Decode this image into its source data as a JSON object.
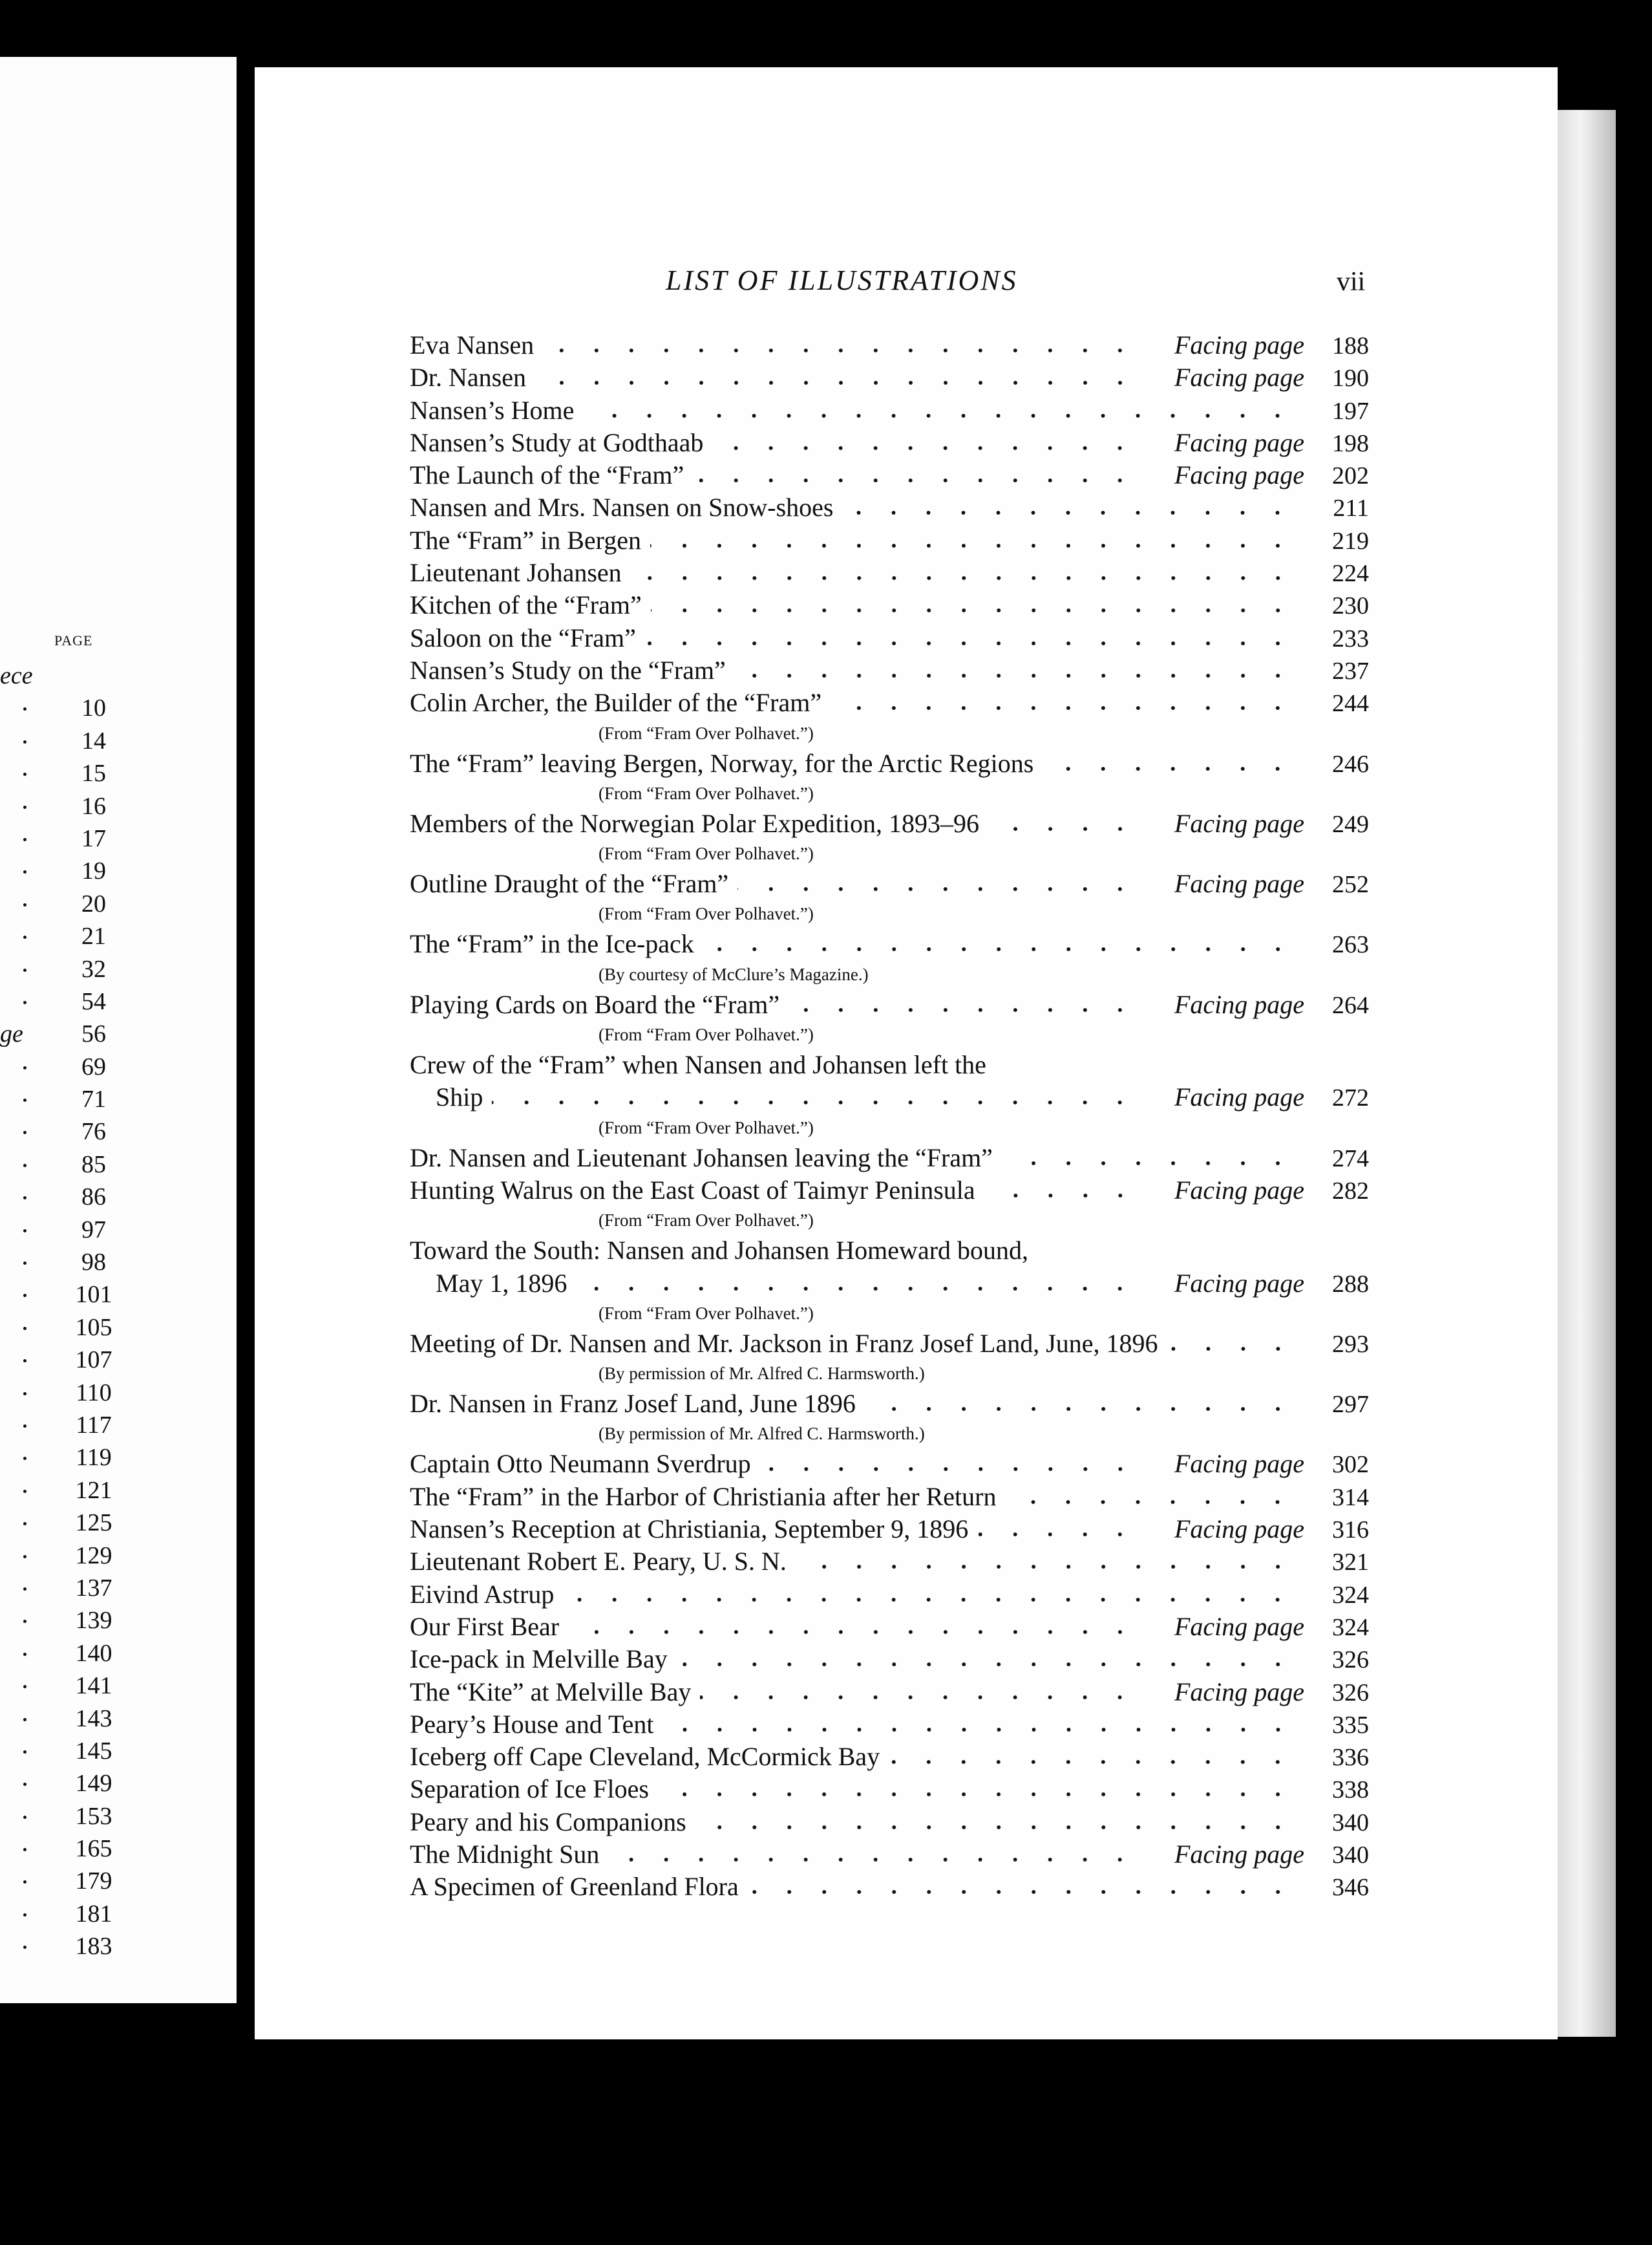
{
  "left_page": {
    "header": "PAGE",
    "rows": [
      {
        "prefix": "ece"
      },
      {
        "page": "10"
      },
      {
        "page": "14"
      },
      {
        "page": "15"
      },
      {
        "page": "16"
      },
      {
        "page": "17"
      },
      {
        "page": "19"
      },
      {
        "page": "20"
      },
      {
        "page": "21"
      },
      {
        "page": "32"
      },
      {
        "page": "54"
      },
      {
        "prefix": "ge",
        "page": "56"
      },
      {
        "page": "69"
      },
      {
        "page": "71"
      },
      {
        "page": "76"
      },
      {
        "page": "85"
      },
      {
        "page": "86"
      },
      {
        "page": "97"
      },
      {
        "page": "98"
      },
      {
        "page": "101"
      },
      {
        "page": "105"
      },
      {
        "page": "107"
      },
      {
        "page": "110"
      },
      {
        "page": "117"
      },
      {
        "page": "119"
      },
      {
        "page": "121"
      },
      {
        "page": "125"
      },
      {
        "page": "129"
      },
      {
        "page": "137"
      },
      {
        "page": "139"
      },
      {
        "page": "140"
      },
      {
        "page": "141"
      },
      {
        "page": "143"
      },
      {
        "page": "145"
      },
      {
        "page": "149"
      },
      {
        "page": "153"
      },
      {
        "page": "165"
      },
      {
        "page": "179"
      },
      {
        "page": "181"
      },
      {
        "page": "183"
      }
    ]
  },
  "right_page": {
    "header": {
      "title": "LIST OF ILLUSTRATIONS",
      "page_number": "vii"
    },
    "entries": [
      {
        "title": "Eva Nansen",
        "facing": "Facing page",
        "page": "188"
      },
      {
        "title": "Dr. Nansen",
        "facing": "Facing page",
        "page": "190"
      },
      {
        "title": "Nansen’s Home",
        "page": "197"
      },
      {
        "title": "Nansen’s Study at Godthaab",
        "facing": "Facing page",
        "page": "198"
      },
      {
        "title": "The Launch of the “Fram”",
        "facing": "Facing page",
        "page": "202"
      },
      {
        "title": "Nansen and Mrs. Nansen on Snow-shoes",
        "page": "211"
      },
      {
        "title": "The “Fram” in Bergen",
        "page": "219"
      },
      {
        "title": "Lieutenant Johansen",
        "page": "224"
      },
      {
        "title": "Kitchen of the “Fram”",
        "page": "230"
      },
      {
        "title": "Saloon on the “Fram”",
        "page": "233"
      },
      {
        "title": "Nansen’s Study on the “Fram”",
        "page": "237"
      },
      {
        "title": "Colin Archer, the Builder of the “Fram”",
        "page": "244",
        "note": "(From “Fram Over Polhavet.”)"
      },
      {
        "title": "The “Fram” leaving Bergen, Norway, for the Arctic Regions",
        "page": "246",
        "note": "(From “Fram Over Polhavet.”)"
      },
      {
        "title": "Members of the Norwegian Polar Expedition, 1893–96",
        "facing": "Facing page",
        "page": "249",
        "note": "(From “Fram Over Polhavet.”)"
      },
      {
        "title": "Outline Draught of the “Fram”",
        "facing": "Facing page",
        "page": "252",
        "note": "(From “Fram Over Polhavet.”)"
      },
      {
        "title": "The “Fram” in the Ice-pack",
        "page": "263",
        "note": "(By courtesy of McClure’s Magazine.)"
      },
      {
        "title": "Playing Cards on Board the “Fram”",
        "facing": "Facing page",
        "page": "264",
        "note": "(From “Fram Over Polhavet.”)"
      },
      {
        "title": "Crew of the “Fram” when Nansen and Johansen left the",
        "title_cont": "Ship",
        "facing": "Facing page",
        "page": "272",
        "note": "(From “Fram Over Polhavet.”)"
      },
      {
        "title": "Dr. Nansen and Lieutenant Johansen leaving the “Fram”",
        "page": "274"
      },
      {
        "title": "Hunting Walrus on the East Coast of Taimyr Peninsula",
        "facing": "Facing page",
        "page": "282",
        "note": "(From “Fram Over Polhavet.”)"
      },
      {
        "title": "Toward the South: Nansen and Johansen Homeward bound,",
        "title_cont": "May 1, 1896",
        "facing": "Facing page",
        "page": "288",
        "note": "(From “Fram Over Polhavet.”)"
      },
      {
        "title": "Meeting of Dr. Nansen and Mr. Jackson in Franz Josef Land, June, 1896",
        "page": "293",
        "note": "(By permission of Mr. Alfred C. Harmsworth.)"
      },
      {
        "title": "Dr. Nansen in Franz Josef Land, June 1896",
        "page": "297",
        "note": "(By permission of Mr. Alfred C. Harmsworth.)"
      },
      {
        "title": "Captain Otto Neumann Sverdrup",
        "facing": "Facing page",
        "page": "302"
      },
      {
        "title": "The “Fram” in the Harbor of Christiania after her Return",
        "page": "314"
      },
      {
        "title": "Nansen’s Reception at Christiania, September 9, 1896",
        "facing": "Facing page",
        "page": "316"
      },
      {
        "title": "Lieutenant Robert E. Peary, U. S. N.",
        "page": "321"
      },
      {
        "title": "Eivind Astrup",
        "page": "324"
      },
      {
        "title": "Our First Bear",
        "facing": "Facing page",
        "page": "324"
      },
      {
        "title": "Ice-pack in Melville Bay",
        "page": "326"
      },
      {
        "title": "The “Kite” at Melville Bay",
        "facing": "Facing page",
        "page": "326"
      },
      {
        "title": "Peary’s House and Tent",
        "page": "335"
      },
      {
        "title": "Iceberg off Cape Cleveland, McCormick Bay",
        "page": "336"
      },
      {
        "title": "Separation of Ice Floes",
        "page": "338"
      },
      {
        "title": "Peary and his Companions",
        "page": "340"
      },
      {
        "title": "The Midnight Sun",
        "facing": "Facing page",
        "page": "340"
      },
      {
        "title": "A Specimen of Greenland Flora",
        "page": "346"
      }
    ]
  }
}
